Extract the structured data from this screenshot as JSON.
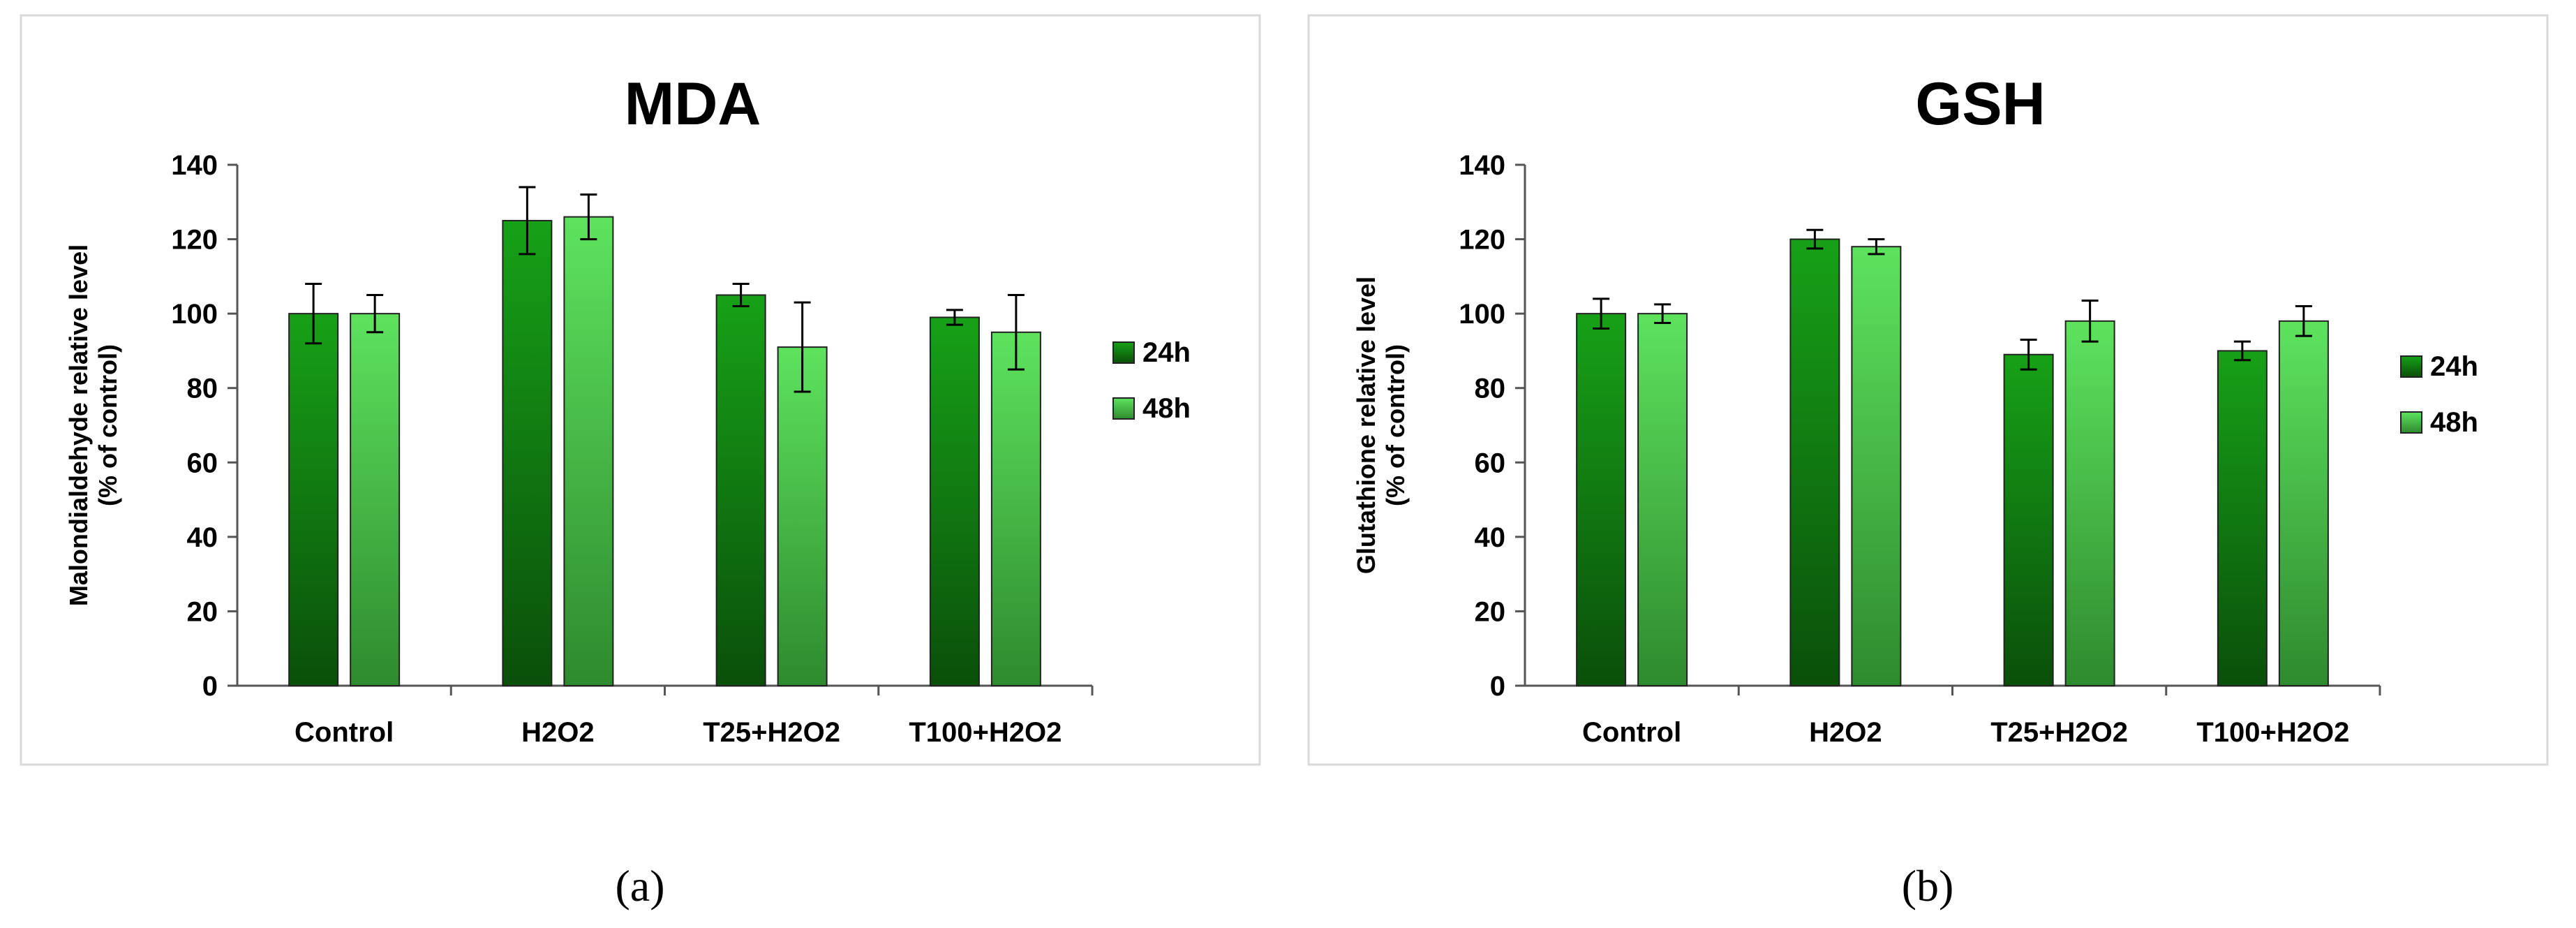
{
  "figure": {
    "panel_labels": [
      "(a)",
      "(b)"
    ]
  },
  "chart_data": [
    {
      "type": "bar",
      "title": "MDA",
      "ylabel_line1": "Malondialdehyde relative level",
      "ylabel_line2": "(% of control)",
      "ylim": [
        0,
        140
      ],
      "yticks": [
        0,
        20,
        40,
        60,
        80,
        100,
        120,
        140
      ],
      "categories": [
        "Control",
        "H2O2",
        "T25+H2O2",
        "T100+H2O2"
      ],
      "series": [
        {
          "name": "24h",
          "values": [
            100,
            125,
            105,
            99
          ],
          "errors": [
            8,
            9,
            3,
            2
          ],
          "color": "#0e7a0e"
        },
        {
          "name": "48h",
          "values": [
            100,
            126,
            91,
            95
          ],
          "errors": [
            5,
            6,
            12,
            10
          ],
          "color": "#3fbf3f"
        }
      ],
      "legend": "right"
    },
    {
      "type": "bar",
      "title": "GSH",
      "ylabel_line1": "Glutathione relative level",
      "ylabel_line2": "(% of control)",
      "ylim": [
        0,
        140
      ],
      "yticks": [
        0,
        20,
        40,
        60,
        80,
        100,
        120,
        140
      ],
      "categories": [
        "Control",
        "H2O2",
        "T25+H2O2",
        "T100+H2O2"
      ],
      "series": [
        {
          "name": "24h",
          "values": [
            100,
            120,
            89,
            90
          ],
          "errors": [
            4,
            2.5,
            4,
            2.5
          ],
          "color": "#0e7a0e"
        },
        {
          "name": "48h",
          "values": [
            100,
            118,
            98,
            98
          ],
          "errors": [
            2.5,
            2,
            5.5,
            4
          ],
          "color": "#3fbf3f"
        }
      ],
      "legend": "right"
    }
  ]
}
